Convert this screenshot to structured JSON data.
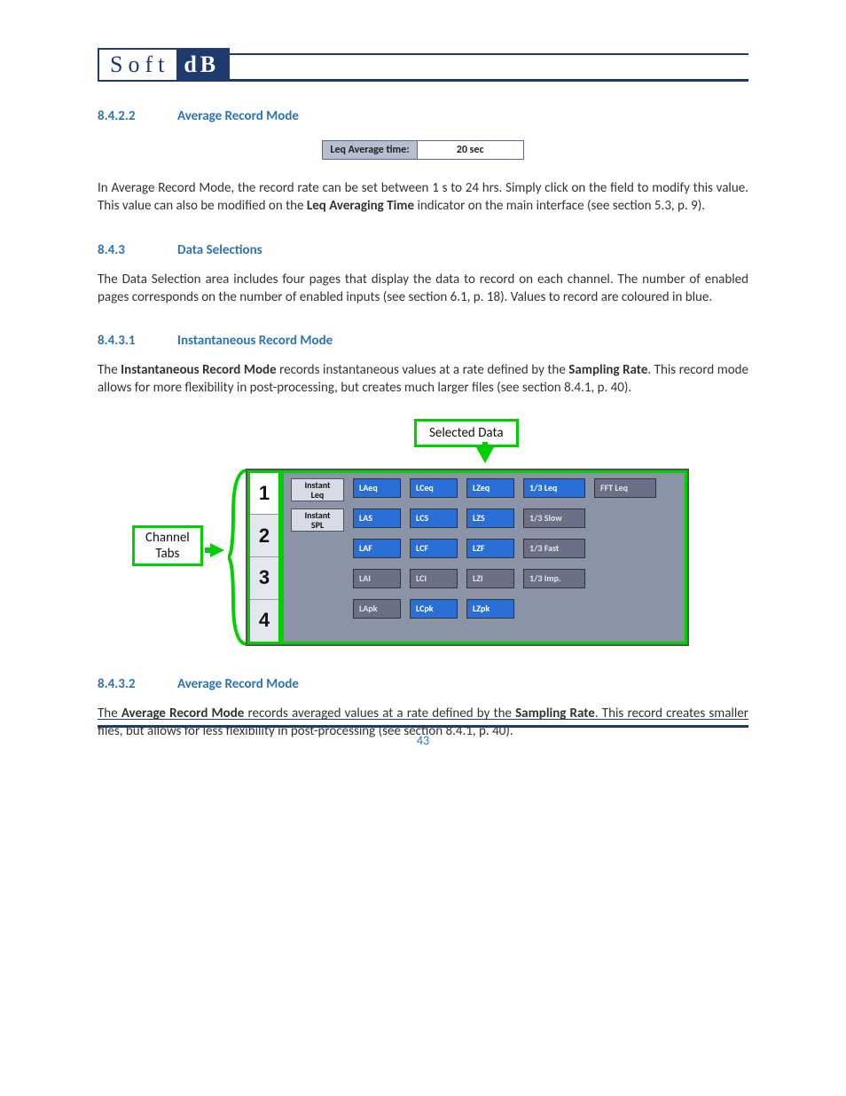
{
  "logo": {
    "left": "Soft",
    "right": "dB"
  },
  "sections": {
    "s8422": {
      "num": "8.4.2.2",
      "title": "Average Record Mode"
    },
    "s843": {
      "num": "8.4.3",
      "title": "Data Selections"
    },
    "s8431": {
      "num": "8.4.3.1",
      "title": "Instantaneous Record Mode"
    },
    "s8432": {
      "num": "8.4.3.2",
      "title": "Average Record Mode"
    }
  },
  "leq": {
    "label": "Leq Average time:",
    "value": "20 sec"
  },
  "para1a": "In Average Record Mode, the record rate can be set between 1 s to 24 hrs. Simply click on the field to modify this value. This value can also be modified on the ",
  "para1_bold": "Leq Averaging Time",
  "para1b": " indicator on the main interface (see section 5.3, p. 9).",
  "para2": "The Data Selection area includes four pages that display the data to record on each channel. The number of enabled pages corresponds on the number of enabled inputs (see section 6.1, p. 18). Values to record are coloured in blue.",
  "para3a": "The ",
  "para3_bold1": "Instantaneous Record Mode",
  "para3b": " records instantaneous values at a rate defined by the ",
  "para3_bold2": "Sampling Rate",
  "para3c": ". This record mode allows for more flexibility in post-processing, but creates much larger files (see section 8.4.1, p. 40).",
  "para4a": "The ",
  "para4_bold1": "Average Record Mode",
  "para4b": " records averaged values at a rate defined by the ",
  "para4_bold2": "Sampling Rate",
  "para4c": ". This record creates smaller files, but allows for less flexibility in post-processing (see section 8.4.1, p. 40).",
  "callouts": {
    "selected": "Selected Data",
    "channel_l1": "Channel",
    "channel_l2": "Tabs"
  },
  "tabs": [
    "1",
    "2",
    "3",
    "4"
  ],
  "rowLabels": {
    "leq": "Instant\nLeq",
    "spl": "Instant\nSPL"
  },
  "chips": {
    "r0": [
      "LAeq",
      "LCeq",
      "LZeq",
      "1/3 Leq",
      "FFT Leq"
    ],
    "r1": [
      "LAS",
      "LCS",
      "LZS",
      "1/3 Slow"
    ],
    "r2": [
      "LAF",
      "LCF",
      "LZF",
      "1/3 Fast"
    ],
    "r3": [
      "LAI",
      "LCI",
      "LZI",
      "1/3 Imp."
    ],
    "r4": [
      "LApk",
      "LCpk",
      "LZpk"
    ]
  },
  "chipColors": {
    "r0": [
      "blue",
      "blue",
      "blue",
      "blue",
      "grey"
    ],
    "r1": [
      "blue",
      "blue",
      "blue",
      "grey"
    ],
    "r2": [
      "blue",
      "blue",
      "blue",
      "grey"
    ],
    "r3": [
      "grey",
      "grey",
      "grey",
      "grey"
    ],
    "r4": [
      "grey",
      "blue",
      "blue"
    ]
  },
  "colors": {
    "brand": "#1f3a6e",
    "heading": "#2e74b5",
    "annot": "#00d000",
    "panel": "#8b93a6",
    "chipBlue": "#2a6fd6",
    "chipGrey": "#6a7186"
  },
  "pageNumber": "43"
}
